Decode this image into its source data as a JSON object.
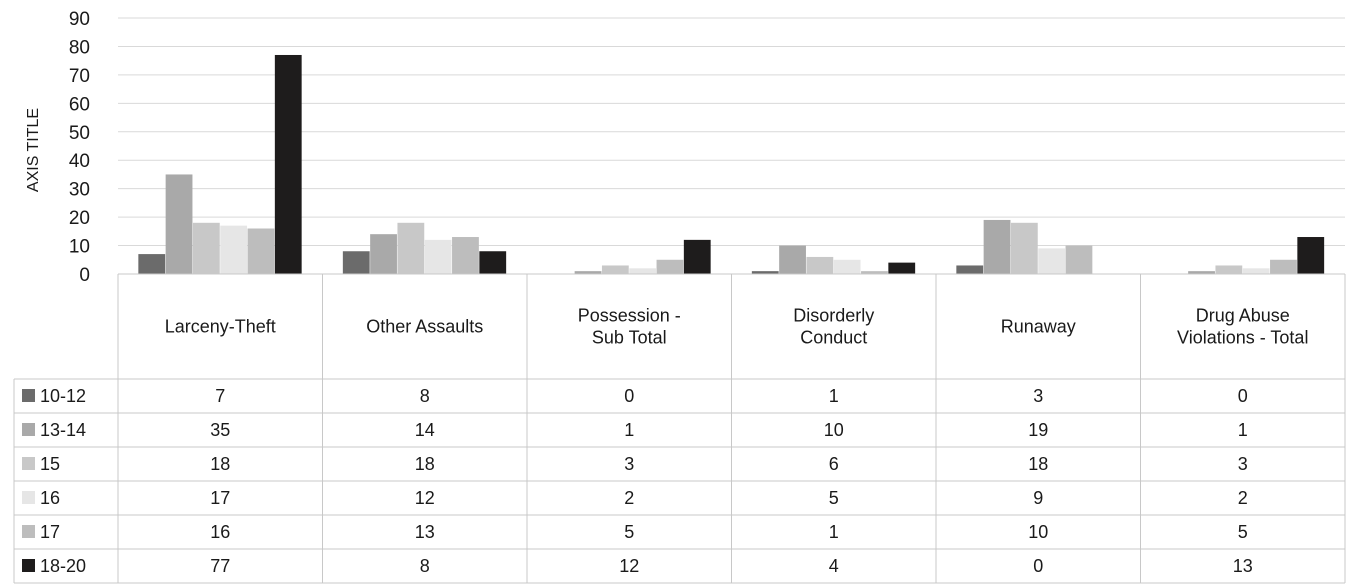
{
  "chart_data": {
    "type": "bar",
    "ylabel": "AXIS TITLE",
    "ylim": [
      0,
      90
    ],
    "yticks": [
      0,
      10,
      20,
      30,
      40,
      50,
      60,
      70,
      80,
      90
    ],
    "grid": true,
    "legend": "data table rows",
    "categories": [
      [
        "Larceny-Theft"
      ],
      [
        "Other Assaults"
      ],
      [
        "Possession -",
        "Sub Total"
      ],
      [
        "Disorderly",
        "Conduct"
      ],
      [
        "Runaway"
      ],
      [
        "Drug Abuse",
        "Violations - Total"
      ]
    ],
    "series": [
      {
        "name": "10-12",
        "color": "#6b6b6b",
        "values": [
          7,
          8,
          0,
          1,
          3,
          0
        ]
      },
      {
        "name": "13-14",
        "color": "#a9a9a9",
        "values": [
          35,
          14,
          1,
          10,
          19,
          1
        ]
      },
      {
        "name": "15",
        "color": "#c8c8c8",
        "values": [
          18,
          18,
          3,
          6,
          18,
          3
        ]
      },
      {
        "name": "16",
        "color": "#e6e6e6",
        "values": [
          17,
          12,
          2,
          5,
          9,
          2
        ]
      },
      {
        "name": "17",
        "color": "#bdbdbd",
        "values": [
          16,
          13,
          5,
          1,
          10,
          5
        ]
      },
      {
        "name": "18-20",
        "color": "#1e1c1c",
        "values": [
          77,
          8,
          12,
          4,
          0,
          13
        ]
      }
    ]
  }
}
